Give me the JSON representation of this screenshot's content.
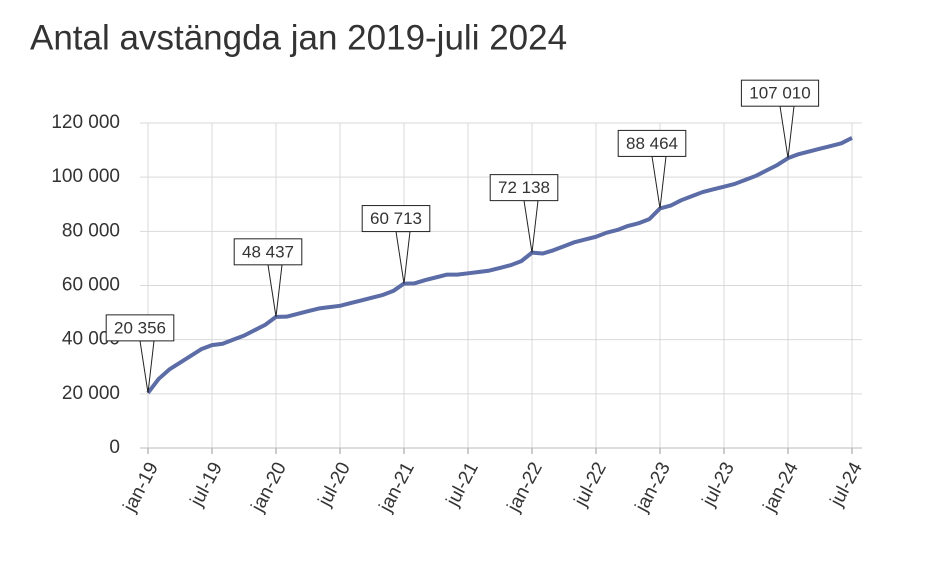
{
  "chart_data": {
    "type": "line",
    "title": "Antal avstängda jan 2019-juli 2024",
    "categories": [
      "jan-19",
      null,
      null,
      null,
      null,
      null,
      "jul-19",
      null,
      null,
      null,
      null,
      null,
      "jan-20",
      null,
      null,
      null,
      null,
      null,
      "jul-20",
      null,
      null,
      null,
      null,
      null,
      "jan-21",
      null,
      null,
      null,
      null,
      null,
      "jul-21",
      null,
      null,
      null,
      null,
      null,
      "jan-22",
      null,
      null,
      null,
      null,
      null,
      "jul-22",
      null,
      null,
      null,
      null,
      null,
      "jan-23",
      null,
      null,
      null,
      null,
      null,
      "jul-23",
      null,
      null,
      null,
      null,
      null,
      "jan-24",
      null,
      null,
      null,
      null,
      null,
      "jul-24"
    ],
    "values": [
      20356,
      25500,
      29000,
      31500,
      34000,
      36500,
      38000,
      38500,
      40000,
      41500,
      43500,
      45500,
      48437,
      48500,
      49500,
      50500,
      51500,
      52000,
      52500,
      53500,
      54500,
      55500,
      56500,
      58000,
      60713,
      60800,
      62000,
      63000,
      64000,
      64000,
      64500,
      65000,
      65500,
      66500,
      67500,
      69000,
      72138,
      71800,
      73000,
      74500,
      76000,
      77000,
      78000,
      79500,
      80500,
      82000,
      83000,
      84500,
      88464,
      89500,
      91500,
      93000,
      94500,
      95500,
      96500,
      97500,
      99000,
      100500,
      102500,
      104500,
      107010,
      108500,
      109500,
      110500,
      111500,
      112500,
      114500
    ],
    "value_labels": [
      "20 356",
      null,
      null,
      null,
      null,
      null,
      null,
      null,
      null,
      null,
      null,
      null,
      "48 437",
      null,
      null,
      null,
      null,
      null,
      null,
      null,
      null,
      null,
      null,
      null,
      "60 713",
      null,
      null,
      null,
      null,
      null,
      null,
      null,
      null,
      null,
      null,
      null,
      "72 138",
      null,
      null,
      null,
      null,
      null,
      null,
      null,
      null,
      null,
      null,
      null,
      "88 464",
      null,
      null,
      null,
      null,
      null,
      null,
      null,
      null,
      null,
      null,
      null,
      "107 010",
      null,
      null,
      null,
      null,
      null,
      null
    ],
    "color": "#5b6ca6",
    "ylim": [
      0,
      120000
    ],
    "yticks": [
      0,
      {
        "value": 20000,
        "label": "20 000"
      },
      {
        "value": 40000,
        "label": "40 000"
      },
      {
        "value": 60000,
        "label": "60 000"
      },
      {
        "value": 80000,
        "label": "80 000"
      },
      {
        "value": 100000,
        "label": "100 000"
      },
      {
        "value": 120000,
        "label": "120 000"
      }
    ],
    "grid": true
  }
}
